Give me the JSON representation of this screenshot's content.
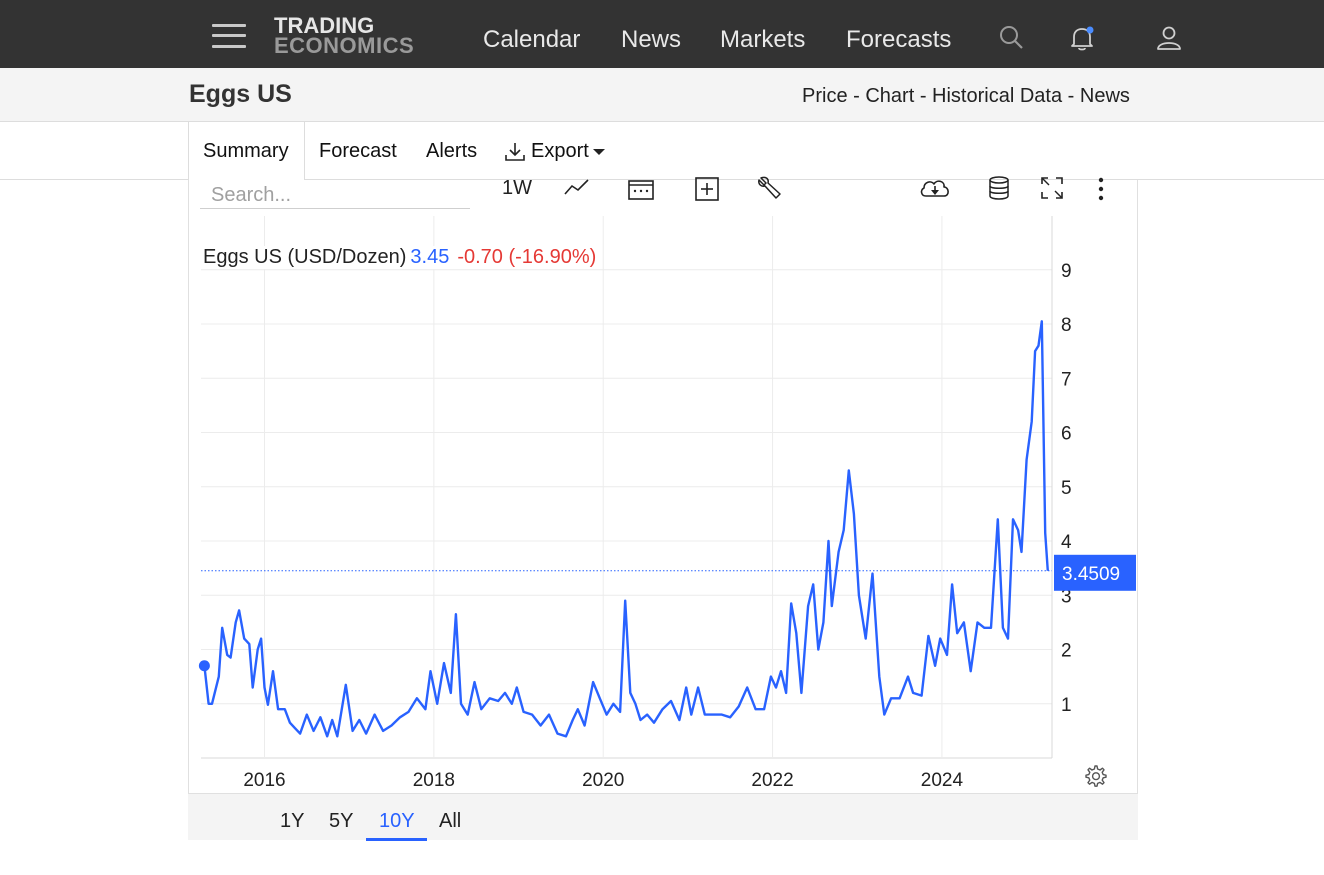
{
  "header": {
    "logo_line1": "TRADING",
    "logo_line2": "ECONOMICS",
    "nav": [
      "Calendar",
      "News",
      "Markets",
      "Forecasts"
    ],
    "icons": [
      "menu-icon",
      "search-icon",
      "bell-icon",
      "user-icon"
    ],
    "notification_dot_color": "#4a8cff"
  },
  "page": {
    "title": "Eggs US",
    "breadcrumb": [
      "Price",
      "Chart",
      "Historical Data",
      "News"
    ],
    "breadcrumb_separator": " - "
  },
  "tabs": {
    "summary": "Summary",
    "forecast": "Forecast",
    "alerts": "Alerts",
    "export": "Export"
  },
  "toolbar": {
    "search_placeholder": "Search...",
    "interval": "1W",
    "icons": [
      "line-chart-icon",
      "calendar-range-icon",
      "add-indicator-icon",
      "wrench-icon",
      "cloud-download-icon",
      "database-icon",
      "fullscreen-icon",
      "more-vertical-icon",
      "settings-gear-icon"
    ]
  },
  "legend": {
    "name": "Eggs US (USD/Dozen)",
    "value": "3.45",
    "change": "-0.70 (-16.90%)"
  },
  "price_label": "3.4509",
  "ranges": {
    "items": [
      "1Y",
      "5Y",
      "10Y",
      "All"
    ],
    "active": "10Y"
  },
  "colors": {
    "line": "#2962ff",
    "negative": "#e53935",
    "topbar": "#333333"
  },
  "chart_data": {
    "type": "line",
    "series_name": "Eggs US (USD/Dozen)",
    "x_ticks": [
      "2016",
      "2018",
      "2020",
      "2022",
      "2024"
    ],
    "y_ticks": [
      1,
      2,
      3,
      4,
      5,
      6,
      7,
      8,
      9
    ],
    "xlim": [
      2015.25,
      2025.3
    ],
    "ylim": [
      0,
      10
    ],
    "last_value": 3.4509,
    "points": [
      [
        2015.29,
        1.7
      ],
      [
        2015.34,
        1.0
      ],
      [
        2015.38,
        1.0
      ],
      [
        2015.46,
        1.5
      ],
      [
        2015.5,
        2.4
      ],
      [
        2015.56,
        1.9
      ],
      [
        2015.6,
        1.85
      ],
      [
        2015.66,
        2.5
      ],
      [
        2015.7,
        2.72
      ],
      [
        2015.76,
        2.2
      ],
      [
        2015.82,
        2.1
      ],
      [
        2015.86,
        1.3
      ],
      [
        2015.92,
        2.0
      ],
      [
        2015.96,
        2.2
      ],
      [
        2016.0,
        1.3
      ],
      [
        2016.04,
        0.98
      ],
      [
        2016.1,
        1.6
      ],
      [
        2016.16,
        0.9
      ],
      [
        2016.24,
        0.9
      ],
      [
        2016.3,
        0.65
      ],
      [
        2016.36,
        0.55
      ],
      [
        2016.42,
        0.45
      ],
      [
        2016.5,
        0.8
      ],
      [
        2016.58,
        0.5
      ],
      [
        2016.66,
        0.75
      ],
      [
        2016.74,
        0.4
      ],
      [
        2016.8,
        0.7
      ],
      [
        2016.86,
        0.4
      ],
      [
        2016.96,
        1.35
      ],
      [
        2017.04,
        0.5
      ],
      [
        2017.12,
        0.7
      ],
      [
        2017.2,
        0.45
      ],
      [
        2017.3,
        0.8
      ],
      [
        2017.4,
        0.5
      ],
      [
        2017.5,
        0.6
      ],
      [
        2017.6,
        0.75
      ],
      [
        2017.7,
        0.85
      ],
      [
        2017.8,
        1.1
      ],
      [
        2017.9,
        0.9
      ],
      [
        2017.96,
        1.6
      ],
      [
        2018.04,
        1.0
      ],
      [
        2018.12,
        1.75
      ],
      [
        2018.2,
        1.2
      ],
      [
        2018.26,
        2.65
      ],
      [
        2018.32,
        1.0
      ],
      [
        2018.4,
        0.8
      ],
      [
        2018.48,
        1.4
      ],
      [
        2018.56,
        0.9
      ],
      [
        2018.66,
        1.1
      ],
      [
        2018.76,
        1.05
      ],
      [
        2018.84,
        1.2
      ],
      [
        2018.92,
        1.0
      ],
      [
        2018.98,
        1.3
      ],
      [
        2019.06,
        0.85
      ],
      [
        2019.16,
        0.8
      ],
      [
        2019.26,
        0.6
      ],
      [
        2019.36,
        0.8
      ],
      [
        2019.46,
        0.45
      ],
      [
        2019.56,
        0.4
      ],
      [
        2019.64,
        0.7
      ],
      [
        2019.7,
        0.9
      ],
      [
        2019.78,
        0.6
      ],
      [
        2019.88,
        1.4
      ],
      [
        2019.96,
        1.1
      ],
      [
        2020.04,
        0.8
      ],
      [
        2020.12,
        1.0
      ],
      [
        2020.2,
        0.85
      ],
      [
        2020.26,
        2.9
      ],
      [
        2020.32,
        1.2
      ],
      [
        2020.38,
        1.0
      ],
      [
        2020.44,
        0.7
      ],
      [
        2020.52,
        0.8
      ],
      [
        2020.6,
        0.65
      ],
      [
        2020.7,
        0.9
      ],
      [
        2020.8,
        1.05
      ],
      [
        2020.9,
        0.7
      ],
      [
        2020.98,
        1.3
      ],
      [
        2021.04,
        0.8
      ],
      [
        2021.12,
        1.3
      ],
      [
        2021.2,
        0.8
      ],
      [
        2021.3,
        0.8
      ],
      [
        2021.4,
        0.8
      ],
      [
        2021.5,
        0.75
      ],
      [
        2021.6,
        0.95
      ],
      [
        2021.7,
        1.3
      ],
      [
        2021.8,
        0.9
      ],
      [
        2021.9,
        0.9
      ],
      [
        2021.98,
        1.5
      ],
      [
        2022.04,
        1.3
      ],
      [
        2022.1,
        1.6
      ],
      [
        2022.16,
        1.2
      ],
      [
        2022.22,
        2.85
      ],
      [
        2022.28,
        2.3
      ],
      [
        2022.34,
        1.2
      ],
      [
        2022.42,
        2.8
      ],
      [
        2022.48,
        3.2
      ],
      [
        2022.54,
        2.0
      ],
      [
        2022.6,
        2.5
      ],
      [
        2022.66,
        4.0
      ],
      [
        2022.7,
        2.8
      ],
      [
        2022.78,
        3.8
      ],
      [
        2022.84,
        4.2
      ],
      [
        2022.9,
        5.3
      ],
      [
        2022.96,
        4.5
      ],
      [
        2023.02,
        3.0
      ],
      [
        2023.1,
        2.2
      ],
      [
        2023.18,
        3.4
      ],
      [
        2023.26,
        1.5
      ],
      [
        2023.32,
        0.8
      ],
      [
        2023.4,
        1.1
      ],
      [
        2023.5,
        1.1
      ],
      [
        2023.6,
        1.5
      ],
      [
        2023.66,
        1.2
      ],
      [
        2023.76,
        1.15
      ],
      [
        2023.84,
        2.25
      ],
      [
        2023.92,
        1.7
      ],
      [
        2023.98,
        2.2
      ],
      [
        2024.06,
        1.9
      ],
      [
        2024.12,
        3.2
      ],
      [
        2024.18,
        2.3
      ],
      [
        2024.26,
        2.5
      ],
      [
        2024.34,
        1.6
      ],
      [
        2024.42,
        2.5
      ],
      [
        2024.5,
        2.4
      ],
      [
        2024.58,
        2.4
      ],
      [
        2024.66,
        4.4
      ],
      [
        2024.72,
        2.4
      ],
      [
        2024.78,
        2.2
      ],
      [
        2024.84,
        4.4
      ],
      [
        2024.9,
        4.2
      ],
      [
        2024.94,
        3.8
      ],
      [
        2025.0,
        5.5
      ],
      [
        2025.06,
        6.2
      ],
      [
        2025.1,
        7.5
      ],
      [
        2025.14,
        7.6
      ],
      [
        2025.18,
        8.05
      ],
      [
        2025.22,
        4.15
      ],
      [
        2025.25,
        3.45
      ]
    ]
  }
}
